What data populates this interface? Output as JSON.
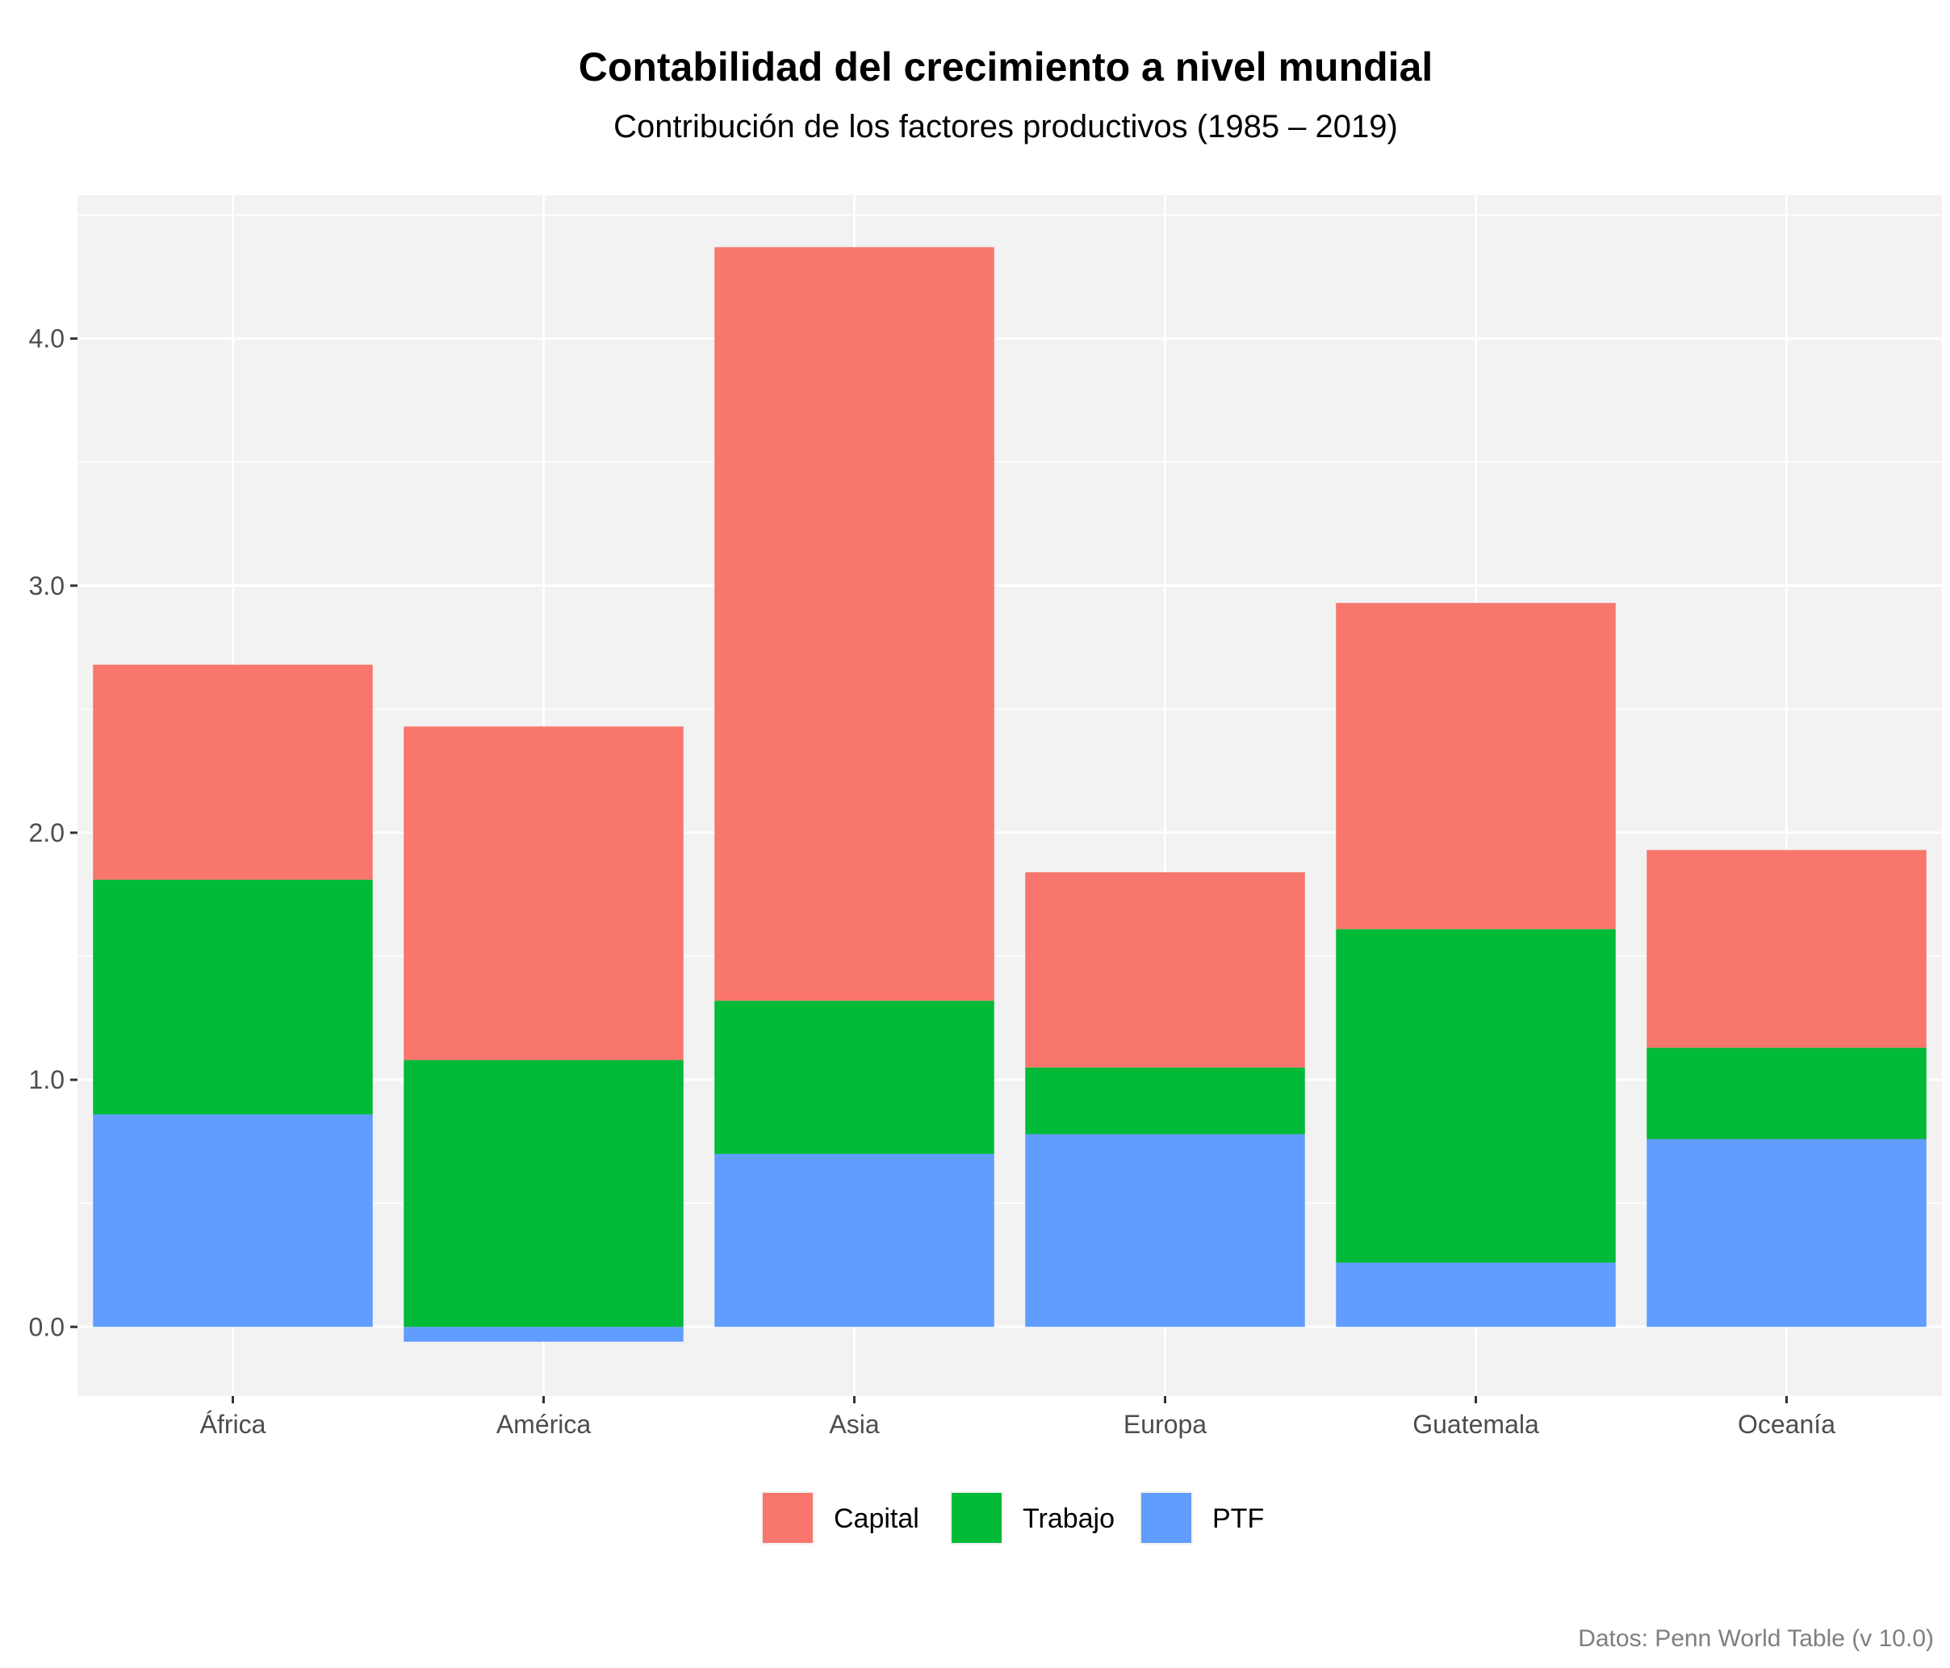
{
  "chart_data": {
    "type": "bar",
    "stacked": true,
    "title": "Contabilidad del crecimiento a nivel mundial",
    "subtitle": "Contribución de los factores productivos (1985 – 2019)",
    "caption": "Datos: Penn World Table (v 10.0)",
    "xlabel": "",
    "ylabel": "",
    "categories": [
      "África",
      "América",
      "Asia",
      "Europa",
      "Guatemala",
      "Oceanía"
    ],
    "series": [
      {
        "name": "PTF",
        "color": "#619CFF",
        "values": [
          0.86,
          -0.06,
          0.7,
          0.78,
          0.26,
          0.76
        ]
      },
      {
        "name": "Trabajo",
        "color": "#00BA38",
        "values": [
          0.95,
          1.08,
          0.62,
          0.27,
          1.35,
          0.37
        ]
      },
      {
        "name": "Capital",
        "color": "#F8766D",
        "values": [
          0.87,
          1.35,
          3.05,
          0.79,
          1.32,
          0.8
        ]
      }
    ],
    "legend_order": [
      "Capital",
      "Trabajo",
      "PTF"
    ],
    "legend_position": "bottom",
    "ylim": [
      -0.28,
      4.58
    ],
    "yticks": [
      0.0,
      1.0,
      2.0,
      3.0,
      4.0
    ],
    "ytick_labels": [
      "0.0",
      "1.0",
      "2.0",
      "3.0",
      "4.0"
    ],
    "grid": true,
    "panel_background": "#F2F2F2"
  }
}
